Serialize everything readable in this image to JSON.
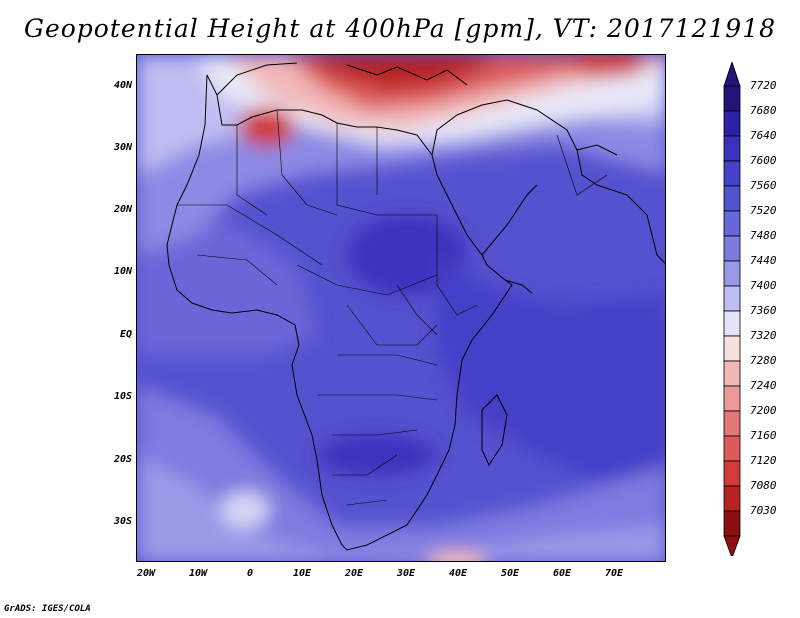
{
  "title": "Geopotential Height at 400hPa [gpm], VT: 2017121918",
  "credit": "GrADS: IGES/COLA",
  "lat_labels": [
    "40N",
    "30N",
    "20N",
    "10N",
    "EQ",
    "10S",
    "20S",
    "30S"
  ],
  "lon_labels": [
    "20W",
    "10W",
    "0",
    "10E",
    "20E",
    "30E",
    "40E",
    "50E",
    "60E",
    "70E"
  ],
  "colorbar": {
    "levels": [
      "7720",
      "7680",
      "7640",
      "7600",
      "7560",
      "7520",
      "7480",
      "7440",
      "7400",
      "7360",
      "7320",
      "7280",
      "7240",
      "7200",
      "7160",
      "7120",
      "7080",
      "7030"
    ],
    "colors": [
      "#26137a",
      "#2f20a8",
      "#3a31bd",
      "#4540c8",
      "#5552cf",
      "#6966d8",
      "#7d7be0",
      "#9a99e8",
      "#bfbef2",
      "#e4e4f8",
      "#f8e0e0",
      "#f2b8b8",
      "#ec9898",
      "#e47878",
      "#dc5a5a",
      "#d03c3c",
      "#b82424",
      "#8c1010"
    ]
  },
  "colors": {
    "coast": "#000000",
    "background": "#ffffff"
  }
}
